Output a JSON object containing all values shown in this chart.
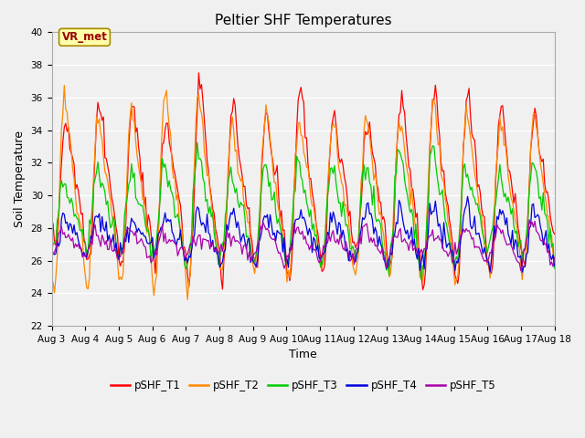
{
  "title": "Peltier SHF Temperatures",
  "xlabel": "Time",
  "ylabel": "Soil Temperature",
  "ylim": [
    22,
    40
  ],
  "x_tick_labels": [
    "Aug 3",
    "Aug 4",
    "Aug 5",
    "Aug 6",
    "Aug 7",
    "Aug 8",
    "Aug 9",
    "Aug 10",
    "Aug 11",
    "Aug 12",
    "Aug 13",
    "Aug 14",
    "Aug 15",
    "Aug 16",
    "Aug 17",
    "Aug 18"
  ],
  "annotation_text": "VR_met",
  "fig_bg_color": "#f0f0f0",
  "plot_bg_color": "#f0f0f0",
  "grid_color": "#d8d8d8",
  "series": [
    {
      "label": "pSHF_T1",
      "color": "#ff0000"
    },
    {
      "label": "pSHF_T2",
      "color": "#ff8800"
    },
    {
      "label": "pSHF_T3",
      "color": "#00cc00"
    },
    {
      "label": "pSHF_T4",
      "color": "#0000dd"
    },
    {
      "label": "pSHF_T5",
      "color": "#aa00aa"
    }
  ],
  "title_fontsize": 11,
  "axis_label_fontsize": 9,
  "tick_fontsize": 7.5,
  "legend_fontsize": 8.5
}
